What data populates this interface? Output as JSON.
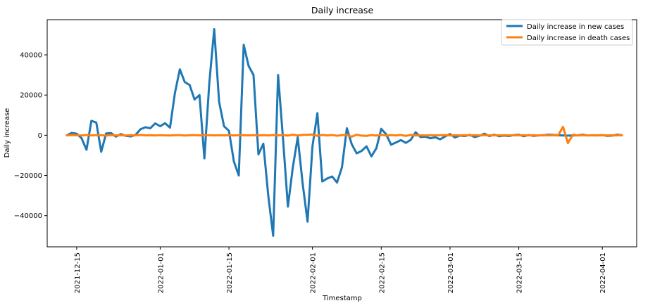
{
  "chart_data": {
    "type": "line",
    "title": "Daily increase",
    "xlabel": "Timestamp",
    "ylabel": "Daily increase",
    "x_ticks": [
      "2021-12-15",
      "2022-01-01",
      "2022-01-15",
      "2022-02-01",
      "2022-02-15",
      "2022-03-01",
      "2022-03-15",
      "2022-04-01"
    ],
    "y_ticks": [
      -40000,
      -20000,
      0,
      20000,
      40000
    ],
    "xlim": [
      "2021-12-09",
      "2022-04-08"
    ],
    "ylim": [
      -55500,
      57500
    ],
    "legend_position": "top-right",
    "grid": false,
    "series": [
      {
        "name": "Daily increase in new cases",
        "color": "#1f77b4",
        "x": [
          "2021-12-13",
          "2021-12-14",
          "2021-12-15",
          "2021-12-16",
          "2021-12-17",
          "2021-12-18",
          "2021-12-19",
          "2021-12-20",
          "2021-12-21",
          "2021-12-22",
          "2021-12-23",
          "2021-12-24",
          "2021-12-25",
          "2021-12-26",
          "2021-12-27",
          "2021-12-28",
          "2021-12-29",
          "2021-12-30",
          "2021-12-31",
          "2022-01-01",
          "2022-01-02",
          "2022-01-03",
          "2022-01-04",
          "2022-01-05",
          "2022-01-06",
          "2022-01-07",
          "2022-01-08",
          "2022-01-09",
          "2022-01-10",
          "2022-01-11",
          "2022-01-12",
          "2022-01-13",
          "2022-01-14",
          "2022-01-15",
          "2022-01-16",
          "2022-01-17",
          "2022-01-18",
          "2022-01-19",
          "2022-01-20",
          "2022-01-21",
          "2022-01-22",
          "2022-01-23",
          "2022-01-24",
          "2022-01-25",
          "2022-01-26",
          "2022-01-27",
          "2022-01-28",
          "2022-01-29",
          "2022-01-30",
          "2022-01-31",
          "2022-02-01",
          "2022-02-02",
          "2022-02-03",
          "2022-02-04",
          "2022-02-05",
          "2022-02-06",
          "2022-02-07",
          "2022-02-08",
          "2022-02-09",
          "2022-02-10",
          "2022-02-11",
          "2022-02-12",
          "2022-02-13",
          "2022-02-14",
          "2022-02-15",
          "2022-02-16",
          "2022-02-17",
          "2022-02-18",
          "2022-02-19",
          "2022-02-20",
          "2022-02-21",
          "2022-02-22",
          "2022-02-23",
          "2022-02-24",
          "2022-02-25",
          "2022-02-26",
          "2022-02-27",
          "2022-02-28",
          "2022-03-01",
          "2022-03-02",
          "2022-03-03",
          "2022-03-04",
          "2022-03-05",
          "2022-03-06",
          "2022-03-07",
          "2022-03-08",
          "2022-03-09",
          "2022-03-10",
          "2022-03-11",
          "2022-03-12",
          "2022-03-13",
          "2022-03-14",
          "2022-03-15",
          "2022-03-16",
          "2022-03-17",
          "2022-03-18",
          "2022-03-19",
          "2022-03-20",
          "2022-03-21",
          "2022-03-22",
          "2022-03-23",
          "2022-03-24",
          "2022-03-25",
          "2022-03-26",
          "2022-03-27",
          "2022-03-28",
          "2022-03-29",
          "2022-03-30",
          "2022-03-31",
          "2022-04-01",
          "2022-04-02",
          "2022-04-03",
          "2022-04-04",
          "2022-04-05"
        ],
        "values": [
          0,
          1200,
          800,
          -1500,
          -7200,
          7200,
          6300,
          -8200,
          900,
          1100,
          -700,
          600,
          -300,
          -600,
          200,
          3000,
          4000,
          3500,
          5900,
          4500,
          6000,
          3800,
          21000,
          32800,
          26500,
          25000,
          17800,
          20000,
          -11500,
          26000,
          52800,
          16500,
          4500,
          2200,
          -13000,
          -20000,
          45000,
          34500,
          30000,
          -9500,
          -4200,
          -30000,
          -50000,
          30000,
          -1500,
          -35500,
          -16000,
          -1000,
          -24000,
          -43000,
          -5500,
          11000,
          -23000,
          -21500,
          -20500,
          -23500,
          -16000,
          3500,
          -4500,
          -9000,
          -7800,
          -5500,
          -10500,
          -6500,
          3200,
          500,
          -4700,
          -3600,
          -2400,
          -3800,
          -2300,
          1500,
          -900,
          -700,
          -1500,
          -1000,
          -2000,
          -600,
          600,
          -1100,
          -200,
          -400,
          200,
          -900,
          -300,
          800,
          -400,
          300,
          -500,
          -200,
          -400,
          100,
          300,
          -500,
          100,
          -300,
          -100,
          0,
          300,
          200,
          0,
          -100,
          -200,
          -100,
          0,
          300,
          -100,
          0,
          -100,
          100,
          -300,
          -200,
          300,
          0
        ],
        "description": "daily values"
      },
      {
        "name": "Daily increase in death cases",
        "color": "#ff7f0e",
        "x": [
          "2021-12-13",
          "2021-12-14",
          "2021-12-15",
          "2021-12-16",
          "2021-12-17",
          "2021-12-18",
          "2021-12-19",
          "2021-12-20",
          "2021-12-21",
          "2021-12-22",
          "2021-12-23",
          "2021-12-24",
          "2021-12-25",
          "2021-12-26",
          "2021-12-27",
          "2021-12-28",
          "2021-12-29",
          "2021-12-30",
          "2021-12-31",
          "2022-01-01",
          "2022-01-02",
          "2022-01-03",
          "2022-01-04",
          "2022-01-05",
          "2022-01-06",
          "2022-01-07",
          "2022-01-08",
          "2022-01-09",
          "2022-01-10",
          "2022-01-11",
          "2022-01-12",
          "2022-01-13",
          "2022-01-14",
          "2022-01-15",
          "2022-01-16",
          "2022-01-17",
          "2022-01-18",
          "2022-01-19",
          "2022-01-20",
          "2022-01-21",
          "2022-01-22",
          "2022-01-23",
          "2022-01-24",
          "2022-01-25",
          "2022-01-26",
          "2022-01-27",
          "2022-01-28",
          "2022-01-29",
          "2022-01-30",
          "2022-01-31",
          "2022-02-01",
          "2022-02-02",
          "2022-02-03",
          "2022-02-04",
          "2022-02-05",
          "2022-02-06",
          "2022-02-07",
          "2022-02-08",
          "2022-02-09",
          "2022-02-10",
          "2022-02-11",
          "2022-02-12",
          "2022-02-13",
          "2022-02-14",
          "2022-02-15",
          "2022-02-16",
          "2022-02-17",
          "2022-02-18",
          "2022-02-19",
          "2022-02-20",
          "2022-02-21",
          "2022-02-22",
          "2022-02-23",
          "2022-02-24",
          "2022-02-25",
          "2022-02-26",
          "2022-02-27",
          "2022-02-28",
          "2022-03-01",
          "2022-03-02",
          "2022-03-03",
          "2022-03-04",
          "2022-03-05",
          "2022-03-06",
          "2022-03-07",
          "2022-03-08",
          "2022-03-09",
          "2022-03-10",
          "2022-03-11",
          "2022-03-12",
          "2022-03-13",
          "2022-03-14",
          "2022-03-15",
          "2022-03-16",
          "2022-03-17",
          "2022-03-18",
          "2022-03-19",
          "2022-03-20",
          "2022-03-21",
          "2022-03-22",
          "2022-03-23",
          "2022-03-24",
          "2022-03-25",
          "2022-03-26",
          "2022-03-27",
          "2022-03-28",
          "2022-03-29",
          "2022-03-30",
          "2022-03-31",
          "2022-04-01",
          "2022-04-02",
          "2022-04-03",
          "2022-04-04",
          "2022-04-05"
        ],
        "values": [
          0,
          100,
          50,
          -80,
          120,
          -60,
          80,
          40,
          -120,
          100,
          -50,
          60,
          -80,
          50,
          0,
          150,
          -60,
          40,
          -100,
          60,
          -40,
          -80,
          50,
          100,
          -120,
          40,
          80,
          -50,
          60,
          30,
          -70,
          50,
          -30,
          80,
          -100,
          40,
          60,
          -40,
          80,
          -60,
          50,
          -80,
          120,
          -60,
          100,
          -150,
          300,
          -100,
          180,
          250,
          400,
          -300,
          200,
          -100,
          150,
          -250,
          100,
          200,
          -700,
          300,
          -200,
          -300,
          100,
          -150,
          200,
          -100,
          80,
          -60,
          150,
          -300,
          200,
          -100,
          50,
          -80,
          60,
          -40,
          50,
          100,
          -80,
          60,
          -50,
          40,
          -30,
          50,
          -60,
          80,
          -40,
          30,
          -50,
          60,
          -30,
          40,
          -20,
          50,
          -40,
          30,
          -60,
          80,
          -40,
          50,
          -80,
          4200,
          -3900,
          300,
          -100,
          50,
          -40,
          30,
          -20,
          40,
          -60,
          50,
          -30,
          20
        ]
      }
    ]
  }
}
